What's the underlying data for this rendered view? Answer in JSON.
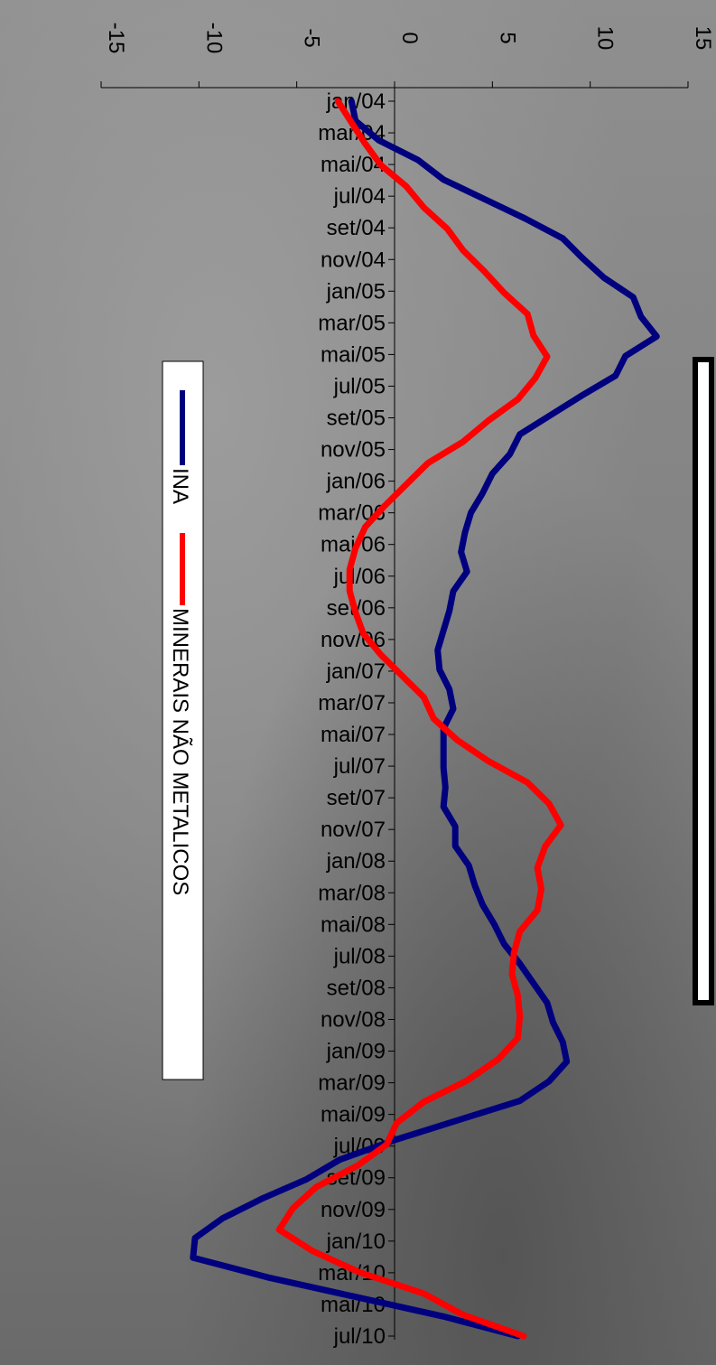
{
  "chart_data": {
    "type": "line",
    "orientation": "rotated-90-clockwise",
    "title": "",
    "xlabel": "",
    "ylabel": "",
    "ylim": [
      -15,
      15
    ],
    "y_ticks": [
      -15,
      -10,
      -5,
      0,
      5,
      10,
      15
    ],
    "x_tick_labels": [
      "jan/04",
      "mar/04",
      "mai/04",
      "jul/04",
      "set/04",
      "nov/04",
      "jan/05",
      "mar/05",
      "mai/05",
      "jul/05",
      "set/05",
      "nov/05",
      "jan/06",
      "mar/06",
      "mai/06",
      "jul/06",
      "set/06",
      "nov/06",
      "jan/07",
      "mar/07",
      "mai/07",
      "jul/07",
      "set/07",
      "nov/07",
      "jan/08",
      "mar/08",
      "mai/08",
      "jul/08",
      "set/08",
      "nov/08",
      "jan/09",
      "mar/09",
      "mai/09",
      "jul/09",
      "set/09",
      "nov/09",
      "jan/10",
      "mar/10",
      "mai/10",
      "jul/10"
    ],
    "grid": false,
    "legend_position": "left",
    "colors": {
      "INA": "#00007f",
      "MINERAIS NÃO METALICOS": "#ff0000"
    },
    "series": [
      {
        "name": "INA",
        "values": [
          -2.2,
          -2.0,
          -0.8,
          1.2,
          2.5,
          4.6,
          6.7,
          8.6,
          9.6,
          10.7,
          12.2,
          12.6,
          13.4,
          11.8,
          11.3,
          9.6,
          8.0,
          6.4,
          5.9,
          5.0,
          4.5,
          3.9,
          3.6,
          3.4,
          3.7,
          3.0,
          2.8,
          2.5,
          2.2,
          2.3,
          2.8,
          3.0,
          2.5,
          2.5,
          2.5,
          2.6,
          2.5,
          3.1,
          3.1,
          3.8,
          4.1,
          4.5,
          5.1,
          5.6,
          6.4,
          7.1,
          7.8,
          8.1,
          8.6,
          8.8,
          7.9,
          6.4,
          3.2,
          0.0,
          -2.8,
          -4.5,
          -6.8,
          -8.8,
          -10.2,
          -10.3,
          -6.5,
          -2.0,
          2.5,
          6.3
        ]
      },
      {
        "name": "MINERAIS NÃO METALICOS",
        "values": [
          -2.9,
          -2.2,
          -1.5,
          -0.7,
          0.6,
          1.5,
          2.7,
          3.5,
          4.6,
          5.6,
          6.8,
          7.1,
          7.8,
          7.2,
          6.3,
          4.8,
          3.5,
          1.7,
          0.6,
          -0.5,
          -1.5,
          -2.0,
          -2.3,
          -2.3,
          -2.0,
          -1.6,
          -0.7,
          0.4,
          1.5,
          2.0,
          3.2,
          4.8,
          6.8,
          7.9,
          8.5,
          7.7,
          7.3,
          7.5,
          7.3,
          6.4,
          6.1,
          6.0,
          6.3,
          6.4,
          6.3,
          5.3,
          3.7,
          1.5,
          0.1,
          -0.4,
          -1.9,
          -4.0,
          -5.2,
          -5.9,
          -4.2,
          -1.8,
          1.5,
          3.5,
          6.6
        ]
      }
    ]
  }
}
